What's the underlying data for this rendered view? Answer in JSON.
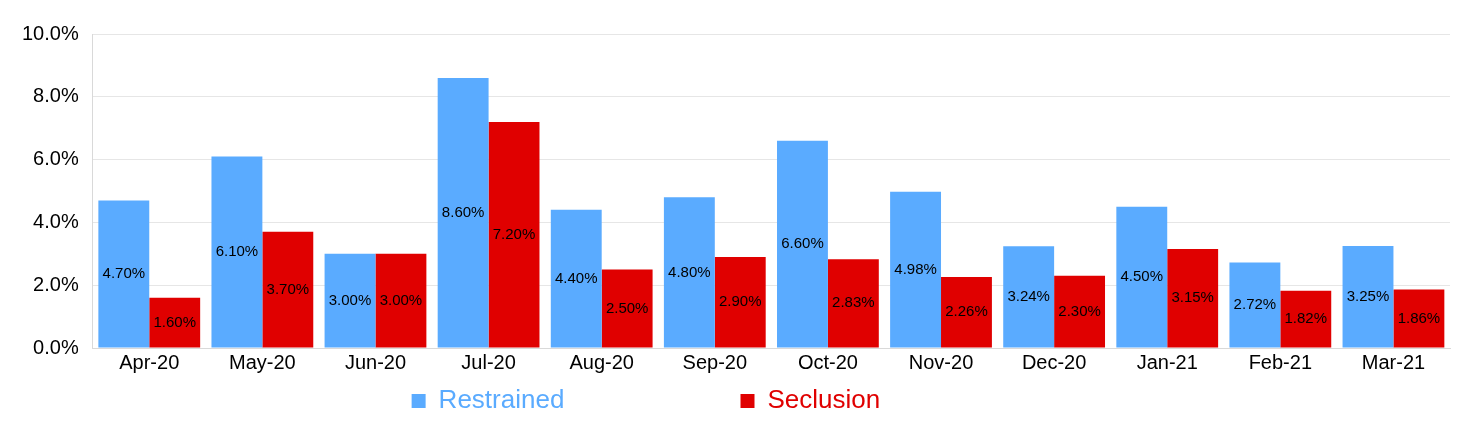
{
  "chart_data": {
    "type": "bar",
    "categories": [
      "Apr-20",
      "May-20",
      "Jun-20",
      "Jul-20",
      "Aug-20",
      "Sep-20",
      "Oct-20",
      "Nov-20",
      "Dec-20",
      "Jan-21",
      "Feb-21",
      "Mar-21"
    ],
    "series": [
      {
        "name": "Restrained",
        "color": "#5aabff",
        "values": [
          4.7,
          6.1,
          3.0,
          8.6,
          4.4,
          4.8,
          6.6,
          4.98,
          3.24,
          4.5,
          2.72,
          3.25
        ],
        "value_labels": [
          "4.70%",
          "6.10%",
          "3.00%",
          "8.60%",
          "4.40%",
          "4.80%",
          "6.60%",
          "4.98%",
          "3.24%",
          "4.50%",
          "2.72%",
          "3.25%"
        ]
      },
      {
        "name": "Seclusion",
        "color": "#e00000",
        "values": [
          1.6,
          3.7,
          3.0,
          7.2,
          2.5,
          2.9,
          2.83,
          2.26,
          2.3,
          3.15,
          1.82,
          1.86
        ],
        "value_labels": [
          "1.60%",
          "3.70%",
          "3.00%",
          "7.20%",
          "2.50%",
          "2.90%",
          "2.83%",
          "2.26%",
          "2.30%",
          "3.15%",
          "1.82%",
          "1.86%"
        ]
      }
    ],
    "ylim": [
      0,
      10
    ],
    "yticks": [
      {
        "value": 0,
        "label": "0.0%"
      },
      {
        "value": 2,
        "label": "2.0%"
      },
      {
        "value": 4,
        "label": "4.0%"
      },
      {
        "value": 6,
        "label": "6.0%"
      },
      {
        "value": 8,
        "label": "8.0%"
      },
      {
        "value": 10,
        "label": "10.0%"
      }
    ],
    "grid": "y",
    "legend": "bottom"
  }
}
